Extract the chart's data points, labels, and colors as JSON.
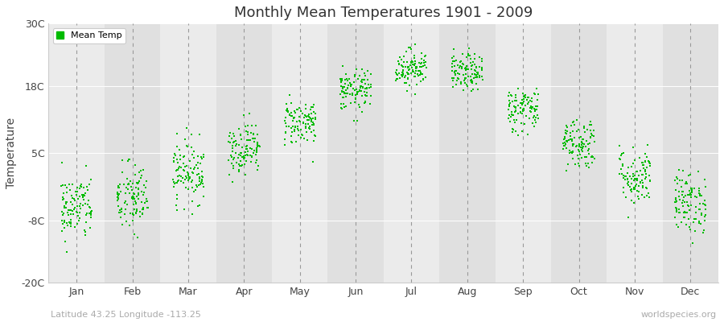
{
  "title": "Monthly Mean Temperatures 1901 - 2009",
  "ylabel": "Temperature",
  "subtitle": "Latitude 43.25 Longitude -113.25",
  "watermark": "worldspecies.org",
  "months": [
    "Jan",
    "Feb",
    "Mar",
    "Apr",
    "May",
    "Jun",
    "Jul",
    "Aug",
    "Sep",
    "Oct",
    "Nov",
    "Dec"
  ],
  "month_positions": [
    1,
    2,
    3,
    4,
    5,
    6,
    7,
    8,
    9,
    10,
    11,
    12
  ],
  "ylim": [
    -20,
    30
  ],
  "yticks": [
    -20,
    -8,
    5,
    18,
    30
  ],
  "ytick_labels": [
    "-20C",
    "-8C",
    "5C",
    "18C",
    "30C"
  ],
  "dot_color": "#00bb00",
  "bg_color": "#ebebeb",
  "bg_color_alt": "#e0e0e0",
  "legend_label": "Mean Temp",
  "num_years": 109,
  "monthly_means": [
    -5.5,
    -3.8,
    1.5,
    6.0,
    11.0,
    17.0,
    21.5,
    20.5,
    13.5,
    7.0,
    0.5,
    -4.5
  ],
  "monthly_stds": [
    3.2,
    3.5,
    3.0,
    2.5,
    2.2,
    2.0,
    1.8,
    1.8,
    2.2,
    2.5,
    2.8,
    3.0
  ],
  "seed": 42
}
